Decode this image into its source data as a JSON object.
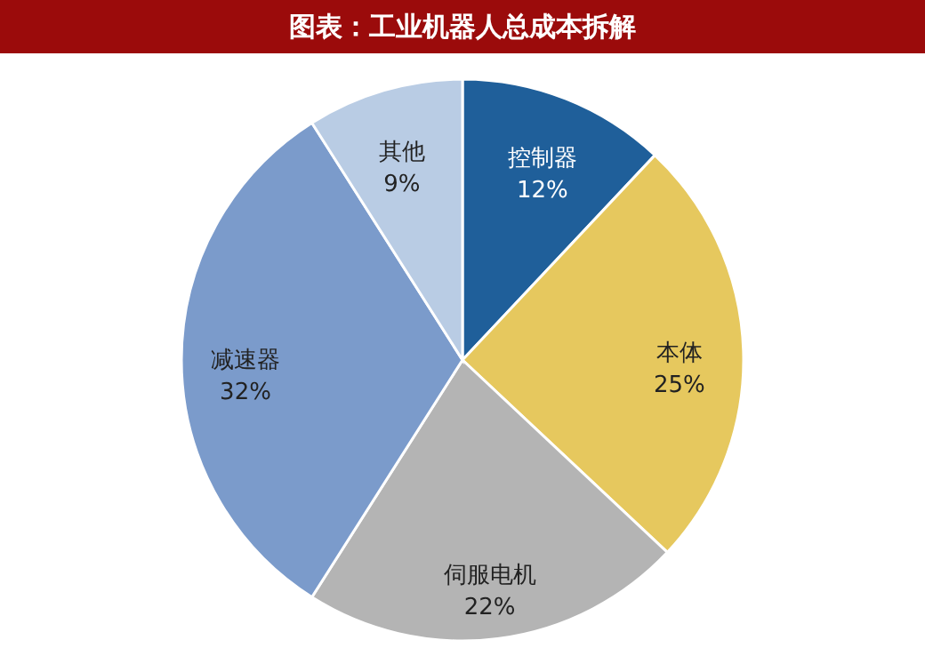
{
  "chart_data": {
    "type": "pie",
    "title": "图表：工业机器人总成本拆解",
    "categories": [
      "控制器",
      "本体",
      "伺服电机",
      "减速器",
      "其他"
    ],
    "values": [
      12,
      25,
      22,
      32,
      9
    ],
    "value_labels": [
      "12%",
      "25%",
      "22%",
      "32%",
      "9%"
    ],
    "colors": [
      "#1f5f9a",
      "#e6c85e",
      "#b4b4b4",
      "#7b9bcb",
      "#b9cce4"
    ]
  }
}
